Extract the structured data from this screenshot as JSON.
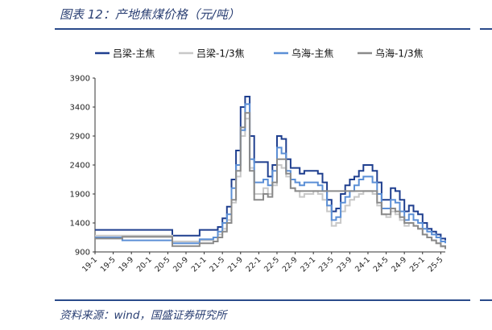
{
  "title": "图表 12：产地焦煤价格（元/吨）",
  "source": "资料来源：wind，国盛证券研究所",
  "colors": {
    "rule": "#2a4a8a",
    "axis": "#333333"
  },
  "chart_data": {
    "type": "line",
    "title": "",
    "xlabel": "",
    "ylabel": "",
    "ylim": [
      900,
      3900
    ],
    "yticks": [
      900,
      1400,
      1900,
      2400,
      2900,
      3400,
      3900
    ],
    "x_range": [
      "2019-01",
      "2025-06"
    ],
    "xtick_labels": [
      "19-1",
      "19-5",
      "19-9",
      "20-1",
      "20-5",
      "20-9",
      "21-1",
      "21-5",
      "21-9",
      "22-1",
      "22-5",
      "22-9",
      "23-1",
      "23-5",
      "23-9",
      "24-1",
      "24-5",
      "24-9",
      "25-1",
      "25-5"
    ],
    "xtick_dates": [
      "2019-01",
      "2019-05",
      "2019-09",
      "2020-01",
      "2020-05",
      "2020-09",
      "2021-01",
      "2021-05",
      "2021-09",
      "2022-01",
      "2022-05",
      "2022-09",
      "2023-01",
      "2023-05",
      "2023-09",
      "2024-01",
      "2024-05",
      "2024-09",
      "2025-01",
      "2025-05"
    ],
    "legend_position": "top",
    "grid": false,
    "series": [
      {
        "name": "吕梁-主焦",
        "color": "#1f3f8f",
        "width": 2,
        "points": [
          [
            "2019-01",
            1280
          ],
          [
            "2020-05",
            1280
          ],
          [
            "2020-06",
            1180
          ],
          [
            "2020-10",
            1180
          ],
          [
            "2020-12",
            1280
          ],
          [
            "2021-03",
            1280
          ],
          [
            "2021-04",
            1330
          ],
          [
            "2021-05",
            1480
          ],
          [
            "2021-06",
            1680
          ],
          [
            "2021-07",
            2150
          ],
          [
            "2021-08",
            2650
          ],
          [
            "2021-09",
            3400
          ],
          [
            "2021-10",
            3580
          ],
          [
            "2021-11",
            2900
          ],
          [
            "2021-12",
            2450
          ],
          [
            "2022-02",
            2450
          ],
          [
            "2022-03",
            2200
          ],
          [
            "2022-04",
            2400
          ],
          [
            "2022-05",
            2900
          ],
          [
            "2022-06",
            2850
          ],
          [
            "2022-07",
            2500
          ],
          [
            "2022-08",
            2350
          ],
          [
            "2022-09",
            2350
          ],
          [
            "2022-10",
            2250
          ],
          [
            "2022-11",
            2300
          ],
          [
            "2022-12",
            2300
          ],
          [
            "2023-01",
            2300
          ],
          [
            "2023-02",
            2250
          ],
          [
            "2023-03",
            2100
          ],
          [
            "2023-04",
            1800
          ],
          [
            "2023-05",
            1600
          ],
          [
            "2023-06",
            1650
          ],
          [
            "2023-07",
            1900
          ],
          [
            "2023-08",
            2050
          ],
          [
            "2023-09",
            2150
          ],
          [
            "2023-10",
            2200
          ],
          [
            "2023-11",
            2300
          ],
          [
            "2023-12",
            2400
          ],
          [
            "2024-01",
            2400
          ],
          [
            "2024-02",
            2300
          ],
          [
            "2024-03",
            2100
          ],
          [
            "2024-04",
            1800
          ],
          [
            "2024-05",
            1800
          ],
          [
            "2024-06",
            2000
          ],
          [
            "2024-07",
            1950
          ],
          [
            "2024-08",
            1800
          ],
          [
            "2024-09",
            1600
          ],
          [
            "2024-10",
            1700
          ],
          [
            "2024-11",
            1600
          ],
          [
            "2024-12",
            1550
          ],
          [
            "2025-01",
            1400
          ],
          [
            "2025-02",
            1300
          ],
          [
            "2025-03",
            1250
          ],
          [
            "2025-04",
            1200
          ],
          [
            "2025-05",
            1130
          ],
          [
            "2025-06",
            1100
          ]
        ]
      },
      {
        "name": "吕梁-1/3焦",
        "color": "#c8c8c8",
        "width": 2,
        "points": [
          [
            "2019-01",
            1180
          ],
          [
            "2020-05",
            1180
          ],
          [
            "2020-06",
            1080
          ],
          [
            "2020-10",
            1080
          ],
          [
            "2020-12",
            1100
          ],
          [
            "2021-03",
            1150
          ],
          [
            "2021-04",
            1200
          ],
          [
            "2021-05",
            1300
          ],
          [
            "2021-06",
            1450
          ],
          [
            "2021-07",
            1750
          ],
          [
            "2021-08",
            2200
          ],
          [
            "2021-09",
            2900
          ],
          [
            "2021-10",
            3200
          ],
          [
            "2021-11",
            2350
          ],
          [
            "2021-12",
            1900
          ],
          [
            "2022-02",
            2000
          ],
          [
            "2022-03",
            1900
          ],
          [
            "2022-04",
            2050
          ],
          [
            "2022-05",
            2400
          ],
          [
            "2022-06",
            2350
          ],
          [
            "2022-07",
            2200
          ],
          [
            "2022-08",
            2000
          ],
          [
            "2022-09",
            1950
          ],
          [
            "2022-10",
            1850
          ],
          [
            "2022-11",
            1900
          ],
          [
            "2022-12",
            1900
          ],
          [
            "2023-01",
            1950
          ],
          [
            "2023-02",
            1900
          ],
          [
            "2023-03",
            1800
          ],
          [
            "2023-04",
            1600
          ],
          [
            "2023-05",
            1350
          ],
          [
            "2023-06",
            1400
          ],
          [
            "2023-07",
            1600
          ],
          [
            "2023-08",
            1700
          ],
          [
            "2023-09",
            1800
          ],
          [
            "2023-10",
            1850
          ],
          [
            "2023-11",
            1900
          ],
          [
            "2023-12",
            1950
          ],
          [
            "2024-01",
            1950
          ],
          [
            "2024-02",
            1900
          ],
          [
            "2024-03",
            1700
          ],
          [
            "2024-04",
            1550
          ],
          [
            "2024-05",
            1500
          ],
          [
            "2024-06",
            1600
          ],
          [
            "2024-07",
            1550
          ],
          [
            "2024-08",
            1450
          ],
          [
            "2024-09",
            1350
          ],
          [
            "2024-10",
            1400
          ],
          [
            "2024-11",
            1350
          ],
          [
            "2024-12",
            1300
          ],
          [
            "2025-01",
            1200
          ],
          [
            "2025-02",
            1150
          ],
          [
            "2025-03",
            1100
          ],
          [
            "2025-04",
            1050
          ],
          [
            "2025-05",
            990
          ],
          [
            "2025-06",
            960
          ]
        ]
      },
      {
        "name": "乌海-主焦",
        "color": "#5b8fd6",
        "width": 2,
        "points": [
          [
            "2019-01",
            1150
          ],
          [
            "2019-06",
            1150
          ],
          [
            "2019-07",
            1100
          ],
          [
            "2020-05",
            1100
          ],
          [
            "2020-06",
            1050
          ],
          [
            "2020-10",
            1050
          ],
          [
            "2020-12",
            1120
          ],
          [
            "2021-03",
            1150
          ],
          [
            "2021-04",
            1250
          ],
          [
            "2021-05",
            1400
          ],
          [
            "2021-06",
            1550
          ],
          [
            "2021-07",
            2000
          ],
          [
            "2021-08",
            2400
          ],
          [
            "2021-09",
            3000
          ],
          [
            "2021-10",
            3450
          ],
          [
            "2021-11",
            2500
          ],
          [
            "2021-12",
            2100
          ],
          [
            "2022-02",
            2150
          ],
          [
            "2022-03",
            2050
          ],
          [
            "2022-04",
            2300
          ],
          [
            "2022-05",
            2700
          ],
          [
            "2022-06",
            2600
          ],
          [
            "2022-07",
            2300
          ],
          [
            "2022-08",
            2150
          ],
          [
            "2022-09",
            2100
          ],
          [
            "2022-10",
            2050
          ],
          [
            "2022-11",
            2100
          ],
          [
            "2022-12",
            2100
          ],
          [
            "2023-01",
            2100
          ],
          [
            "2023-02",
            2050
          ],
          [
            "2023-03",
            1950
          ],
          [
            "2023-04",
            1700
          ],
          [
            "2023-05",
            1450
          ],
          [
            "2023-06",
            1500
          ],
          [
            "2023-07",
            1750
          ],
          [
            "2023-08",
            1850
          ],
          [
            "2023-09",
            1950
          ],
          [
            "2023-10",
            2050
          ],
          [
            "2023-11",
            2150
          ],
          [
            "2023-12",
            2200
          ],
          [
            "2024-01",
            2200
          ],
          [
            "2024-02",
            2100
          ],
          [
            "2024-03",
            1900
          ],
          [
            "2024-04",
            1650
          ],
          [
            "2024-05",
            1650
          ],
          [
            "2024-06",
            1800
          ],
          [
            "2024-07",
            1750
          ],
          [
            "2024-08",
            1600
          ],
          [
            "2024-09",
            1450
          ],
          [
            "2024-10",
            1550
          ],
          [
            "2024-11",
            1450
          ],
          [
            "2024-12",
            1400
          ],
          [
            "2025-01",
            1300
          ],
          [
            "2025-02",
            1250
          ],
          [
            "2025-03",
            1200
          ],
          [
            "2025-04",
            1150
          ],
          [
            "2025-05",
            1080
          ],
          [
            "2025-06",
            1050
          ]
        ]
      },
      {
        "name": "乌海-1/3焦",
        "color": "#8a8a8a",
        "width": 2,
        "points": [
          [
            "2019-01",
            1130
          ],
          [
            "2019-06",
            1130
          ],
          [
            "2019-07",
            1160
          ],
          [
            "2020-05",
            1160
          ],
          [
            "2020-06",
            1000
          ],
          [
            "2020-10",
            1000
          ],
          [
            "2020-12",
            1050
          ],
          [
            "2021-03",
            1080
          ],
          [
            "2021-04",
            1150
          ],
          [
            "2021-05",
            1250
          ],
          [
            "2021-06",
            1400
          ],
          [
            "2021-07",
            1800
          ],
          [
            "2021-08",
            2300
          ],
          [
            "2021-09",
            3050
          ],
          [
            "2021-10",
            3300
          ],
          [
            "2021-11",
            2300
          ],
          [
            "2021-12",
            1800
          ],
          [
            "2022-02",
            1900
          ],
          [
            "2022-03",
            1850
          ],
          [
            "2022-04",
            2100
          ],
          [
            "2022-05",
            2500
          ],
          [
            "2022-06",
            2500
          ],
          [
            "2022-07",
            2250
          ],
          [
            "2022-08",
            2000
          ],
          [
            "2022-09",
            1950
          ],
          [
            "2022-10",
            1950
          ],
          [
            "2022-11",
            1950
          ],
          [
            "2022-12",
            1950
          ],
          [
            "2023-01",
            1950
          ],
          [
            "2023-02",
            1950
          ],
          [
            "2023-03",
            1950
          ],
          [
            "2023-04",
            1950
          ],
          [
            "2023-05",
            1950
          ],
          [
            "2023-06",
            1950
          ],
          [
            "2023-07",
            1950
          ],
          [
            "2023-08",
            1950
          ],
          [
            "2023-09",
            1950
          ],
          [
            "2023-10",
            1950
          ],
          [
            "2023-11",
            1950
          ],
          [
            "2023-12",
            1950
          ],
          [
            "2024-01",
            1950
          ],
          [
            "2024-02",
            1950
          ],
          [
            "2024-03",
            1750
          ],
          [
            "2024-04",
            1550
          ],
          [
            "2024-05",
            1550
          ],
          [
            "2024-06",
            1650
          ],
          [
            "2024-07",
            1600
          ],
          [
            "2024-08",
            1500
          ],
          [
            "2024-09",
            1400
          ],
          [
            "2024-10",
            1400
          ],
          [
            "2024-11",
            1350
          ],
          [
            "2024-12",
            1300
          ],
          [
            "2025-01",
            1200
          ],
          [
            "2025-02",
            1150
          ],
          [
            "2025-03",
            1100
          ],
          [
            "2025-04",
            1050
          ],
          [
            "2025-05",
            1000
          ],
          [
            "2025-06",
            950
          ]
        ]
      }
    ]
  }
}
